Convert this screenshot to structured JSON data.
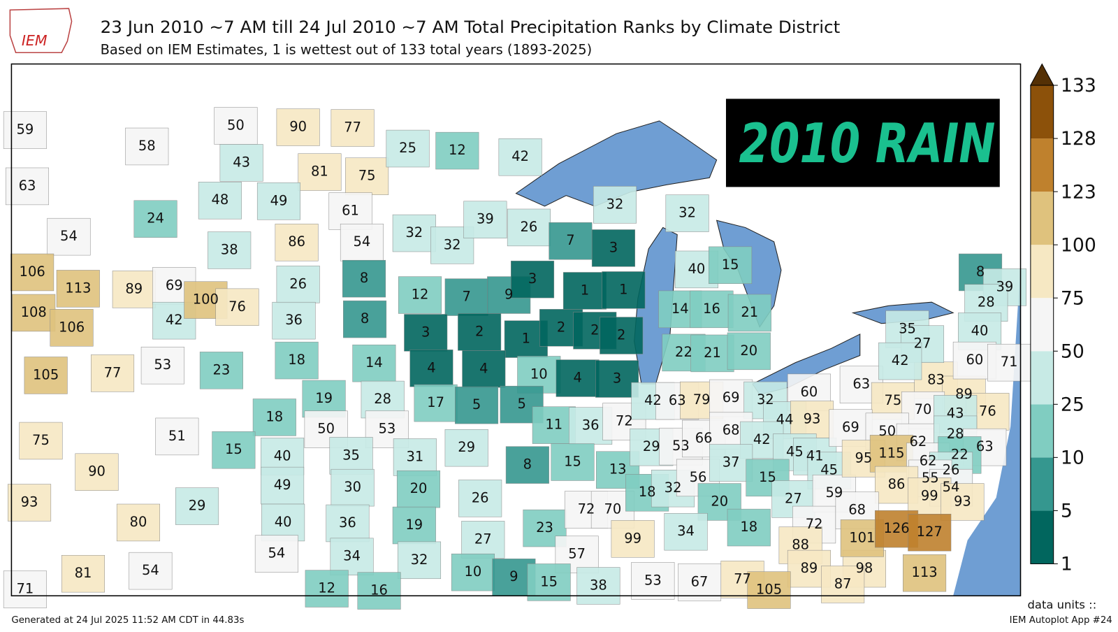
{
  "header": {
    "logo": "IEM",
    "title": "23 Jun 2010 ~7 AM till 24 Jul 2010 ~7 AM Total Precipitation Ranks by Climate District",
    "subtitle": "Based on IEM Estimates, 1 is wettest out of 133 total years (1893-2025)"
  },
  "banner": "2010 RAIN",
  "colorbar": {
    "ticks": [
      1,
      5,
      10,
      25,
      50,
      75,
      100,
      123,
      128,
      133
    ],
    "colors": [
      "#01665e",
      "#35978f",
      "#80cdc1",
      "#c7eae5",
      "#f5f5f5",
      "#f6e8c3",
      "#dfc27d",
      "#bf812d",
      "#8c510a"
    ],
    "extend_color": "#543005"
  },
  "map": {
    "ranks": [
      59,
      58,
      63,
      24,
      54,
      50,
      90,
      77,
      43,
      81,
      75,
      48,
      49,
      61,
      38,
      86,
      54,
      106,
      113,
      89,
      69,
      108,
      106,
      42,
      100,
      76,
      26,
      36,
      8,
      8,
      105,
      77,
      53,
      23,
      18,
      14,
      19,
      28,
      18,
      50,
      53,
      75,
      90,
      51,
      15,
      93,
      80,
      29,
      40,
      35,
      31,
      49,
      30,
      20,
      40,
      36,
      19,
      54,
      34,
      32,
      81,
      54,
      71,
      12,
      16,
      25,
      12,
      42,
      32,
      32,
      39,
      26,
      12,
      7,
      9,
      7,
      3,
      3,
      1,
      1,
      3,
      2,
      1,
      2,
      2,
      2,
      4,
      4,
      10,
      4,
      3,
      17,
      5,
      5,
      32,
      32,
      40,
      15,
      14,
      16,
      21,
      22,
      21,
      20,
      29,
      11,
      36,
      72,
      42,
      63,
      79,
      69,
      32,
      60,
      44,
      93,
      8,
      15,
      13,
      29,
      53,
      66,
      68,
      42,
      45,
      41,
      26,
      23,
      27,
      72,
      70,
      18,
      32,
      56,
      37,
      15,
      45,
      20,
      34,
      18,
      99,
      57,
      27,
      59,
      72,
      88,
      10,
      9,
      15,
      38,
      53,
      67,
      77,
      89,
      98,
      87,
      105,
      63,
      75,
      83,
      89,
      76,
      70,
      43,
      69,
      50,
      62,
      28,
      63,
      95,
      115,
      62,
      22,
      26,
      55,
      54,
      86,
      99,
      93,
      68,
      101,
      126,
      127,
      113,
      8,
      39,
      28,
      40,
      35,
      27,
      60,
      71,
      42
    ]
  },
  "footer": {
    "generated": "Generated at 24 Jul 2025 11:52 AM CDT in 44.83s",
    "data_units": "data units ::",
    "app": "IEM Autoplot App #24"
  }
}
